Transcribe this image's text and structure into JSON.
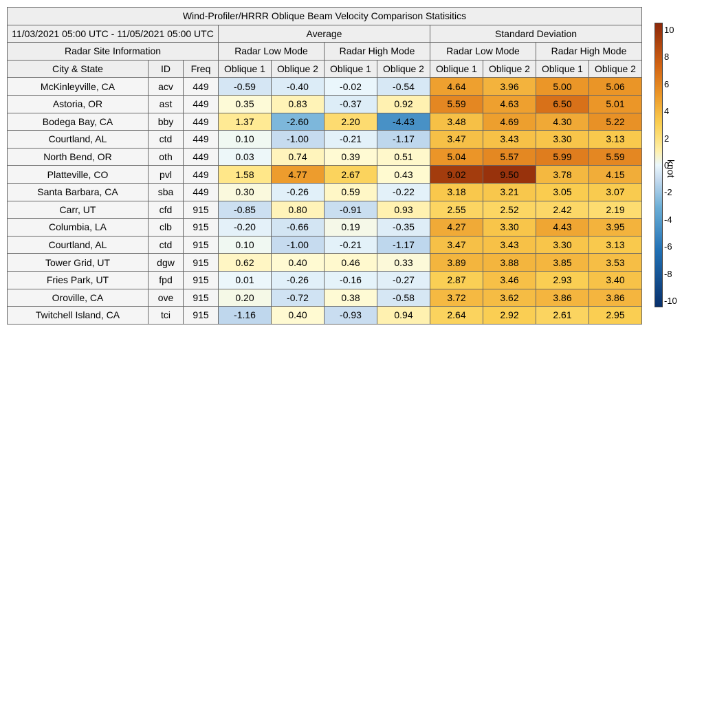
{
  "title": "Wind-Profiler/HRRR Oblique Beam Velocity Comparison Statisitics",
  "date_range": "11/03/2021 05:00 UTC - 11/05/2021 05:00 UTC",
  "groups": {
    "average": "Average",
    "stddev": "Standard Deviation"
  },
  "site_info_label": "Radar Site Information",
  "modes": [
    "Radar Low Mode",
    "Radar High Mode",
    "Radar Low Mode",
    "Radar High Mode"
  ],
  "columns": [
    "City & State",
    "ID",
    "Freq",
    "Oblique 1",
    "Oblique 2",
    "Oblique 1",
    "Oblique 2",
    "Oblique 1",
    "Oblique 2",
    "Oblique 1",
    "Oblique 2"
  ],
  "colorbar": {
    "unit": "knot",
    "min": -10,
    "max": 10,
    "ticks": [
      "10",
      "8",
      "6",
      "4",
      "2",
      "0",
      "-2",
      "-4",
      "-6",
      "-8",
      "-10"
    ]
  },
  "chart_data": {
    "type": "table",
    "title": "Wind-Profiler/HRRR Oblique Beam Velocity Comparison Statisitics",
    "colorscale_range": [
      -10,
      10
    ],
    "colorscale_unit": "knot",
    "rows": [
      {
        "site": "McKinleyville, CA",
        "id": "acv",
        "freq": "449",
        "values": [
          "-0.59",
          "-0.40",
          "-0.02",
          "-0.54",
          "4.64",
          "3.96",
          "5.00",
          "5.06"
        ]
      },
      {
        "site": "Astoria, OR",
        "id": "ast",
        "freq": "449",
        "values": [
          "0.35",
          "0.83",
          "-0.37",
          "0.92",
          "5.59",
          "4.63",
          "6.50",
          "5.01"
        ]
      },
      {
        "site": "Bodega Bay, CA",
        "id": "bby",
        "freq": "449",
        "values": [
          "1.37",
          "-2.60",
          "2.20",
          "-4.43",
          "3.48",
          "4.69",
          "4.30",
          "5.22"
        ]
      },
      {
        "site": "Courtland, AL",
        "id": "ctd",
        "freq": "449",
        "values": [
          "0.10",
          "-1.00",
          "-0.21",
          "-1.17",
          "3.47",
          "3.43",
          "3.30",
          "3.13"
        ]
      },
      {
        "site": "North Bend, OR",
        "id": "oth",
        "freq": "449",
        "values": [
          "0.03",
          "0.74",
          "0.39",
          "0.51",
          "5.04",
          "5.57",
          "5.99",
          "5.59"
        ]
      },
      {
        "site": "Platteville, CO",
        "id": "pvl",
        "freq": "449",
        "values": [
          "1.58",
          "4.77",
          "2.67",
          "0.43",
          "9.02",
          "9.50",
          "3.78",
          "4.15"
        ]
      },
      {
        "site": "Santa Barbara, CA",
        "id": "sba",
        "freq": "449",
        "values": [
          "0.30",
          "-0.26",
          "0.59",
          "-0.22",
          "3.18",
          "3.21",
          "3.05",
          "3.07"
        ]
      },
      {
        "site": "Carr, UT",
        "id": "cfd",
        "freq": "915",
        "values": [
          "-0.85",
          "0.80",
          "-0.91",
          "0.93",
          "2.55",
          "2.52",
          "2.42",
          "2.19"
        ]
      },
      {
        "site": "Columbia, LA",
        "id": "clb",
        "freq": "915",
        "values": [
          "-0.20",
          "-0.66",
          "0.19",
          "-0.35",
          "4.27",
          "3.30",
          "4.43",
          "3.95"
        ]
      },
      {
        "site": "Courtland, AL",
        "id": "ctd",
        "freq": "915",
        "values": [
          "0.10",
          "-1.00",
          "-0.21",
          "-1.17",
          "3.47",
          "3.43",
          "3.30",
          "3.13"
        ]
      },
      {
        "site": "Tower Grid, UT",
        "id": "dgw",
        "freq": "915",
        "values": [
          "0.62",
          "0.40",
          "0.46",
          "0.33",
          "3.89",
          "3.88",
          "3.85",
          "3.53"
        ]
      },
      {
        "site": "Fries Park, UT",
        "id": "fpd",
        "freq": "915",
        "values": [
          "0.01",
          "-0.26",
          "-0.16",
          "-0.27",
          "2.87",
          "3.46",
          "2.93",
          "3.40"
        ]
      },
      {
        "site": "Oroville, CA",
        "id": "ove",
        "freq": "915",
        "values": [
          "0.20",
          "-0.72",
          "0.38",
          "-0.58",
          "3.72",
          "3.62",
          "3.86",
          "3.86"
        ]
      },
      {
        "site": "Twitchell Island, CA",
        "id": "tci",
        "freq": "915",
        "values": [
          "-1.16",
          "0.40",
          "-0.93",
          "0.94",
          "2.64",
          "2.92",
          "2.61",
          "2.95"
        ]
      }
    ]
  }
}
